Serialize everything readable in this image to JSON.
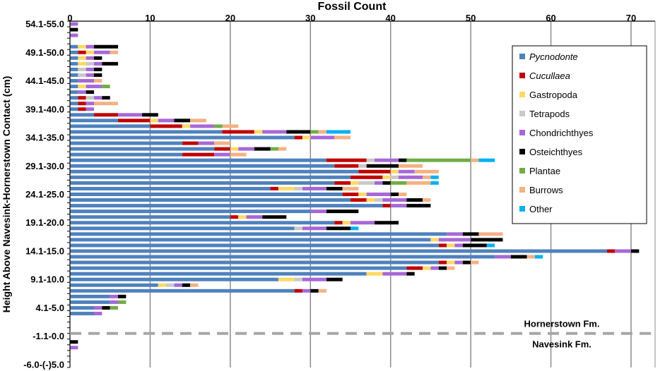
{
  "chart_data": {
    "type": "bar",
    "orientation": "horizontal",
    "stacked": true,
    "title": "Fossil Count",
    "xlabel": "",
    "ylabel": "Height Above Navesink-Hornerstown Contact (cm)",
    "xlim": [
      0,
      73
    ],
    "x_ticks": [
      0,
      10,
      20,
      30,
      40,
      50,
      60,
      70
    ],
    "grid": true,
    "legend_position": "right",
    "categories_top_to_bottom": [
      "54.1-55.0",
      "53.1-54.0",
      "52.1-53.0",
      "51.1-52.0",
      "50.1-51.0",
      "49.1-50.0",
      "48.1-49.0",
      "47.1-48.0",
      "46.1-47.0",
      "45.1-46.0",
      "44.1-45.0",
      "43.1-44.0",
      "42.1-43.0",
      "41.1-42.0",
      "40.1-41.0",
      "39.1-40.0",
      "38.1-39.0",
      "37.1-38.0",
      "36.1-37.0",
      "35.1-36.0",
      "34.1-35.0",
      "33.1-34.0",
      "32.1-33.0",
      "31.1-32.0",
      "30.1-31.0",
      "29.1-30.0",
      "28.1-29.0",
      "27.1-28.0",
      "26.1-27.0",
      "25.1-26.0",
      "24.1-25.0",
      "23.1-24.0",
      "22.1-23.0",
      "21.1-22.0",
      "20.1-21.0",
      "19.1-20.0",
      "18.1-19.0",
      "17.1-18.0",
      "16.1-17.0",
      "15.1-16.0",
      "14.1-15.0",
      "13.1-14.0",
      "12.1-13.0",
      "11.1-12.0",
      "10.1-11.0",
      "9.1-10.0",
      "8.1-9.0",
      "7.1-8.0",
      "6.1-7.0",
      "5.1-6.0",
      "4.1-5.0",
      "3.1-4.0",
      "2.1-3.0",
      "1.1-2.0",
      "0.1-1.0",
      "-1.1-0.0",
      "-2.1-(-1.1)",
      "-3.1-(-2.1)",
      "-4.1-(-3.1)",
      "-5.1-(-4.1)",
      "-6.0-(-)5.0"
    ],
    "y_tick_labels": [
      "54.1-55.0",
      "49.1-50.0",
      "44.1-45.0",
      "39.1-40.0",
      "34.1-35.0",
      "29.1-30.0",
      "24.1-25.0",
      "19.1-20.0",
      "14.1-15.0",
      "9.1-10.0",
      "4.1-5.0",
      "-1.1-0.0",
      "-6.0-(-)5.0"
    ],
    "series": [
      {
        "name": "Pycnodonte",
        "italic": true,
        "color": "#4f81bd",
        "values": [
          0,
          0,
          0,
          0,
          1,
          1,
          1,
          1,
          1,
          1,
          1,
          1,
          1,
          1,
          1,
          1,
          3,
          6,
          10,
          19,
          28,
          14,
          18,
          14,
          32,
          33,
          36,
          35,
          33,
          25,
          34,
          35,
          39,
          30,
          20,
          33,
          28,
          47,
          45,
          46,
          67,
          53,
          46,
          42,
          37,
          26,
          11,
          28,
          5,
          5,
          3,
          3,
          0,
          0,
          0,
          0,
          0,
          0,
          0,
          0,
          0
        ]
      },
      {
        "name": "Cucullaea",
        "italic": true,
        "color": "#c00000",
        "values": [
          0,
          0,
          0,
          0,
          0,
          1,
          0,
          0,
          0,
          0,
          0,
          0,
          0,
          1,
          1,
          1,
          3,
          4,
          4,
          4,
          1,
          2,
          2,
          4,
          5,
          3,
          4,
          4,
          2,
          1,
          2,
          2,
          1,
          0,
          1,
          1,
          0,
          0,
          0,
          1,
          1,
          0,
          1,
          2,
          0,
          0,
          0,
          1,
          0,
          0,
          0,
          0,
          0,
          0,
          0,
          0,
          0,
          0,
          0,
          0,
          0
        ]
      },
      {
        "name": "Gastropoda",
        "italic": false,
        "color": "#ffd966",
        "values": [
          0,
          0,
          0,
          0,
          1,
          1,
          1,
          1,
          0,
          0,
          0,
          1,
          0,
          0,
          0,
          0,
          0,
          1,
          1,
          1,
          1,
          0,
          1,
          0,
          0,
          0,
          1,
          1,
          1,
          2,
          1,
          1,
          0,
          0,
          1,
          1,
          0,
          0,
          1,
          1,
          0,
          0,
          1,
          1,
          2,
          2,
          1,
          0,
          0,
          0,
          0,
          0,
          0,
          0,
          0,
          0,
          0,
          0,
          0,
          0,
          0
        ]
      },
      {
        "name": "Tetrapods",
        "italic": false,
        "color": "#c9c9c9",
        "values": [
          0,
          0,
          0,
          0,
          0,
          0,
          0,
          1,
          1,
          1,
          0,
          0,
          0,
          1,
          0,
          0,
          0,
          0,
          0,
          0,
          0,
          0,
          0,
          0,
          1,
          1,
          0,
          1,
          2,
          1,
          0,
          1,
          0,
          0,
          0,
          0,
          1,
          0,
          0,
          0,
          0,
          0,
          0,
          0,
          0,
          1,
          1,
          0,
          0,
          0,
          0,
          0,
          0,
          0,
          0,
          0,
          0,
          0,
          0,
          0,
          0
        ]
      },
      {
        "name": "Chondrichthyes",
        "italic": false,
        "color": "#a768d6",
        "values": [
          1,
          0,
          1,
          0,
          1,
          2,
          1,
          1,
          1,
          1,
          2,
          2,
          1,
          1,
          1,
          1,
          3,
          2,
          3,
          3,
          3,
          2,
          2,
          2,
          3,
          0,
          2,
          3,
          1,
          3,
          3,
          3,
          2,
          2,
          2,
          3,
          3,
          2,
          4,
          1,
          2,
          2,
          1,
          1,
          3,
          3,
          1,
          1,
          1,
          1,
          1,
          1,
          0,
          0,
          0,
          0,
          0,
          1,
          0,
          0,
          0
        ]
      },
      {
        "name": "Osteichthyes",
        "italic": false,
        "color": "#000000",
        "values": [
          0,
          1,
          0,
          0,
          3,
          0,
          1,
          2,
          1,
          1,
          0,
          0,
          1,
          1,
          0,
          0,
          2,
          2,
          0,
          3,
          0,
          0,
          2,
          0,
          1,
          4,
          0,
          0,
          1,
          2,
          1,
          2,
          3,
          4,
          3,
          3,
          3,
          2,
          4,
          3,
          1,
          2,
          1,
          1,
          1,
          2,
          1,
          1,
          1,
          0,
          1,
          0,
          0,
          0,
          0,
          0,
          1,
          0,
          0,
          0,
          0
        ]
      },
      {
        "name": "Plantae",
        "italic": false,
        "color": "#70ad47",
        "values": [
          0,
          0,
          0,
          0,
          0,
          0,
          0,
          0,
          0,
          0,
          0,
          1,
          0,
          0,
          0,
          0,
          0,
          0,
          1,
          1,
          0,
          0,
          1,
          0,
          8,
          0,
          0,
          0,
          2,
          0,
          0,
          0,
          0,
          0,
          0,
          0,
          0,
          0,
          0,
          0,
          0,
          0,
          0,
          0,
          0,
          0,
          0,
          0,
          0,
          1,
          1,
          0,
          0,
          0,
          0,
          0,
          0,
          0,
          0,
          0,
          0
        ]
      },
      {
        "name": "Burrows",
        "italic": false,
        "color": "#f4b183",
        "values": [
          0,
          0,
          0,
          0,
          0,
          1,
          0,
          0,
          0,
          0,
          1,
          0,
          0,
          0,
          3,
          0,
          0,
          2,
          2,
          1,
          2,
          2,
          1,
          2,
          1,
          3,
          3,
          1,
          3,
          2,
          1,
          1,
          0,
          0,
          0,
          0,
          0,
          3,
          0,
          0,
          0,
          1,
          1,
          1,
          0,
          0,
          1,
          1,
          0,
          0,
          0,
          0,
          0,
          0,
          0,
          0,
          0,
          0,
          0,
          0,
          0
        ]
      },
      {
        "name": "Other",
        "italic": false,
        "color": "#00b0f0",
        "values": [
          0,
          0,
          0,
          0,
          0,
          0,
          0,
          0,
          0,
          0,
          0,
          0,
          0,
          0,
          0,
          0,
          0,
          0,
          0,
          3,
          0,
          0,
          0,
          0,
          2,
          0,
          0,
          1,
          1,
          0,
          0,
          0,
          0,
          0,
          0,
          0,
          1,
          0,
          0,
          1,
          0,
          1,
          0,
          0,
          0,
          0,
          0,
          0,
          0,
          0,
          0,
          0,
          0,
          0,
          0,
          0,
          0,
          0,
          0,
          0,
          0
        ]
      }
    ],
    "annotations": {
      "upper_formation": "Hornerstown Fm.",
      "lower_formation": "Navesink Fm.",
      "contact_line_between": [
        "0.1-1.0",
        "-1.1-0.0"
      ]
    }
  }
}
